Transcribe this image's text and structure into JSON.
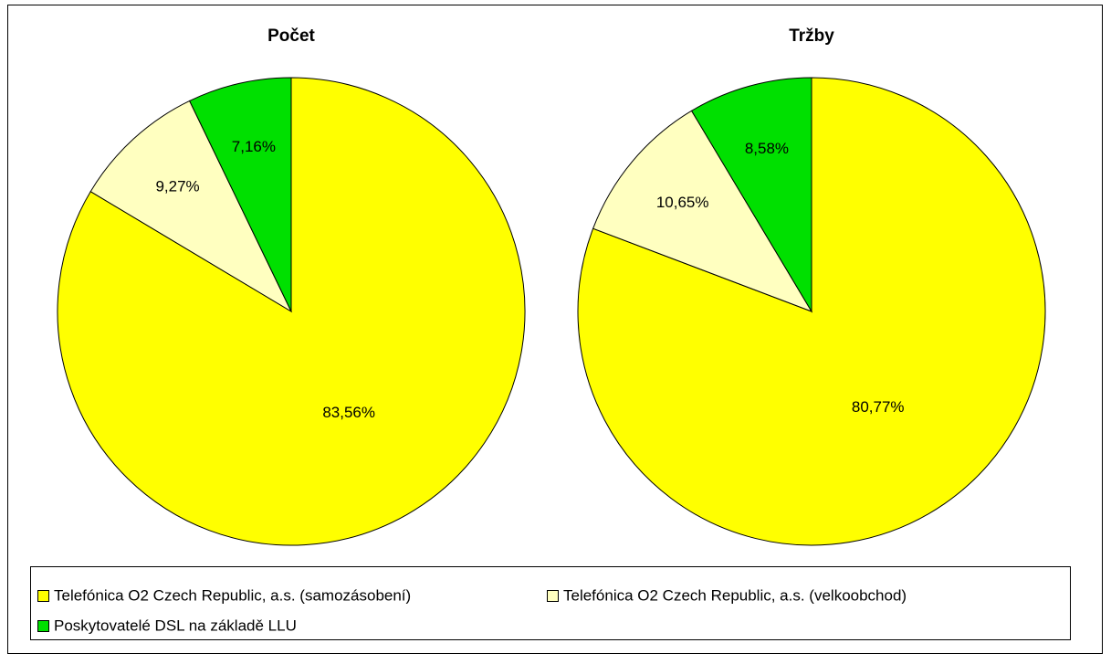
{
  "chart_data": [
    {
      "type": "pie",
      "title": "Počet",
      "categories": [
        "Telefónica O2 Czech Republic, a.s. (samozásobení)",
        "Telefónica O2 Czech Republic, a.s. (velkoobchod)",
        "Poskytovatelé DSL na základě LLU"
      ],
      "colors": [
        "#ffff00",
        "#ffffc0",
        "#00e000"
      ],
      "values": [
        83.56,
        9.27,
        7.16
      ],
      "value_labels": [
        "83,56%",
        "9,27%",
        "7,16%"
      ]
    },
    {
      "type": "pie",
      "title": "Tržby",
      "values": [
        80.77,
        10.65,
        8.58
      ],
      "value_labels": [
        "80,77%",
        "10,65%",
        "8,58%"
      ]
    }
  ]
}
